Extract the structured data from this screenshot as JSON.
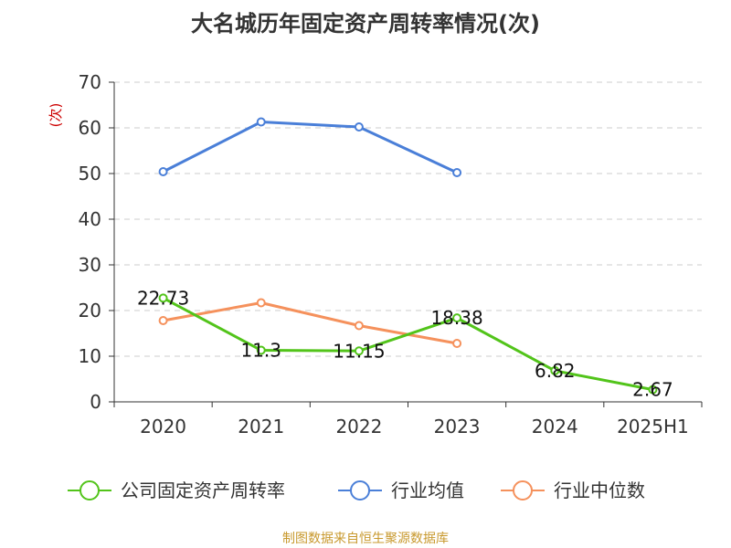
{
  "chart_data": {
    "type": "line",
    "title": "大名城历年固定资产周转率情况(次)",
    "ylabel": "(次)",
    "xlabel": "",
    "categories": [
      "2020",
      "2021",
      "2022",
      "2023",
      "2024",
      "2025H1"
    ],
    "y_ticks": [
      "0",
      "10",
      "20",
      "30",
      "40",
      "50",
      "60",
      "70"
    ],
    "ylim": [
      0,
      70
    ],
    "grid": true,
    "legend_position": "bottom",
    "series": [
      {
        "name": "公司固定资产周转率",
        "color": "#52c41a",
        "values": [
          22.73,
          11.3,
          11.15,
          18.38,
          6.82,
          2.67
        ],
        "labels": [
          "22.73",
          "11.3",
          "11.15",
          "18.38",
          "6.82",
          "2.67"
        ]
      },
      {
        "name": "行业均值",
        "color": "#4a7fd8",
        "values": [
          50.4,
          61.3,
          60.2,
          50.2,
          null,
          null
        ]
      },
      {
        "name": "行业中位数",
        "color": "#f5915c",
        "values": [
          17.8,
          21.7,
          16.7,
          12.8,
          null,
          null
        ]
      }
    ]
  },
  "source": "制图数据来自恒生聚源数据库"
}
